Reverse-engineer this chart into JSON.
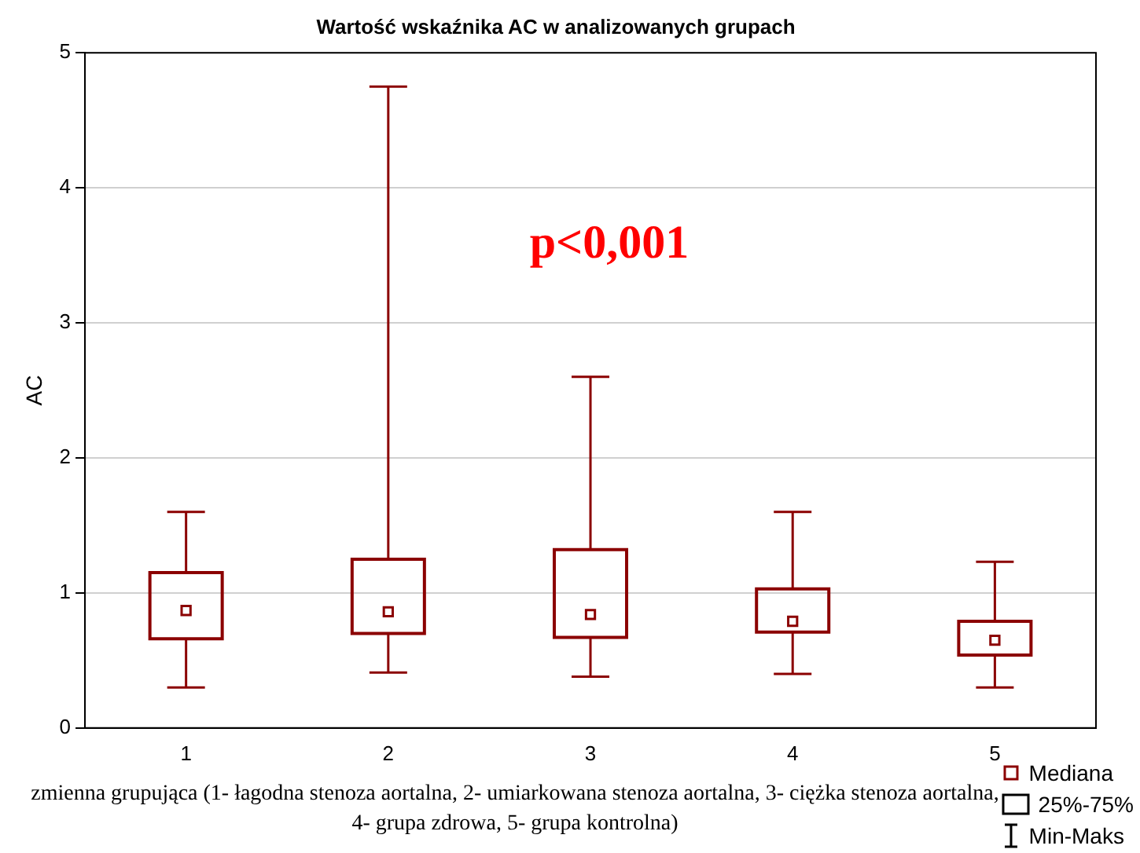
{
  "chart_data": {
    "type": "box",
    "title": "Wartość wskaźnika AC w analizowanych grupach",
    "xlabel": "zmienna grupująca (1- łagodna stenoza aortalna, 2- umiarkowana stenoza aortalna, 3- ciężka stenoza aortalna, 4- grupa zdrowa, 5- grupa kontrolna)",
    "ylabel": "AC",
    "categories": [
      "1",
      "2",
      "3",
      "4",
      "5"
    ],
    "color": "#8b0000",
    "boxes": [
      {
        "low": 0.3,
        "q1": 0.66,
        "median": 0.87,
        "q3": 1.15,
        "high": 1.6
      },
      {
        "low": 0.41,
        "q1": 0.7,
        "median": 0.86,
        "q3": 1.25,
        "high": 4.75
      },
      {
        "low": 0.38,
        "q1": 0.67,
        "median": 0.84,
        "q3": 1.32,
        "high": 2.6
      },
      {
        "low": 0.4,
        "q1": 0.71,
        "median": 0.79,
        "q3": 1.03,
        "high": 1.6
      },
      {
        "low": 0.3,
        "q1": 0.54,
        "median": 0.65,
        "q3": 0.79,
        "high": 1.23
      }
    ],
    "ylim": [
      0,
      5
    ],
    "yticks": [
      0,
      1,
      2,
      3,
      4,
      5
    ],
    "grid": "y",
    "marker": "square",
    "annotations": [
      "p<0,001",
      "Mediana",
      "25%-75%",
      "Min-Maks"
    ]
  }
}
